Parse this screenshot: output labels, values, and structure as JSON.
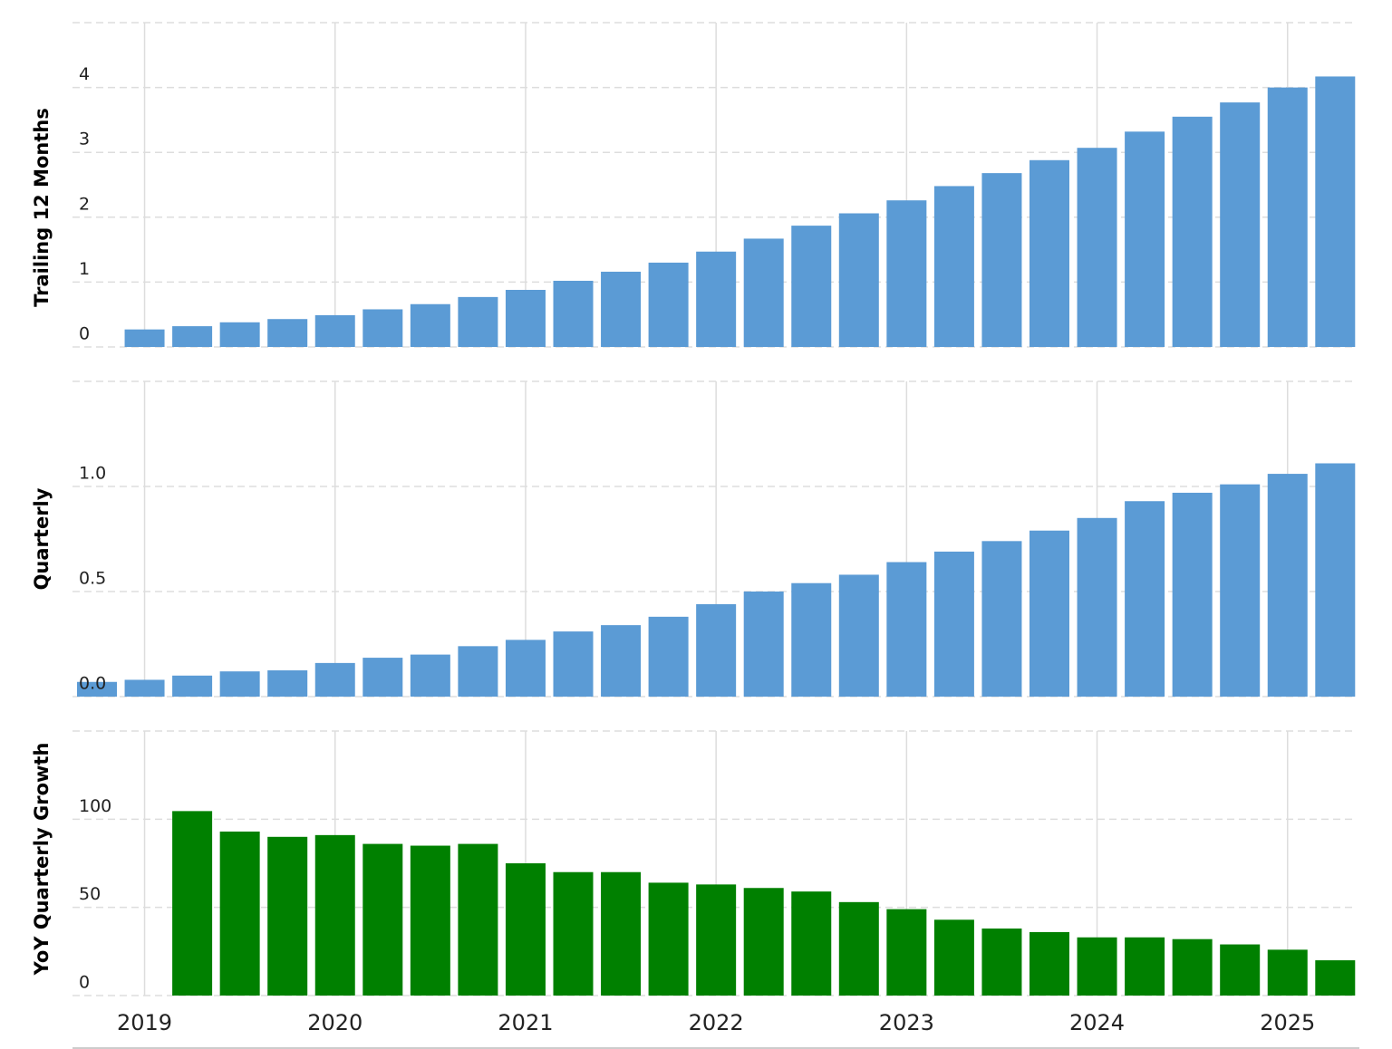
{
  "chart_data": [
    {
      "type": "bar",
      "y_label": "Trailing 12 Months",
      "color": "#5b9bd5",
      "grid": true,
      "ylim": [
        0,
        5
      ],
      "yticks": [
        0,
        1,
        2,
        3,
        4
      ],
      "values": [
        null,
        0.27,
        0.32,
        0.38,
        0.43,
        0.49,
        0.58,
        0.66,
        0.77,
        0.88,
        1.02,
        1.16,
        1.3,
        1.47,
        1.67,
        1.87,
        2.06,
        2.26,
        2.48,
        2.68,
        2.88,
        3.07,
        3.32,
        3.55,
        3.77,
        4.0,
        4.17
      ]
    },
    {
      "type": "bar",
      "y_label": "Quarterly",
      "color": "#5b9bd5",
      "grid": true,
      "ylim": [
        0,
        1.5
      ],
      "yticks": [
        {
          "value": 0,
          "label": "0.0"
        },
        0.5,
        {
          "value": 1,
          "label": "1.0"
        }
      ],
      "values": [
        0.07,
        0.08,
        0.1,
        0.12,
        0.125,
        0.16,
        0.185,
        0.2,
        0.24,
        0.27,
        0.31,
        0.34,
        0.38,
        0.44,
        0.5,
        0.54,
        0.58,
        0.64,
        0.69,
        0.74,
        0.79,
        0.85,
        0.93,
        0.97,
        1.01,
        1.06,
        1.11
      ]
    },
    {
      "type": "bar",
      "y_label": "YoY Quarterly Growth",
      "color": "#008000",
      "grid": true,
      "ylim": [
        0,
        150
      ],
      "yticks": [
        0,
        50,
        100
      ],
      "categories": [
        null,
        "2019",
        null,
        null,
        null,
        "2020",
        null,
        null,
        null,
        "2021",
        null,
        null,
        null,
        "2022",
        null,
        null,
        null,
        "2023",
        null,
        null,
        null,
        "2024",
        null,
        null,
        null,
        "2025",
        null
      ],
      "values": [
        null,
        null,
        104.6,
        93,
        90,
        91,
        86,
        85,
        86,
        75,
        70,
        70,
        64,
        63,
        61,
        59,
        53,
        49,
        43,
        38,
        36,
        33,
        33,
        32,
        29,
        26,
        20
      ]
    }
  ]
}
